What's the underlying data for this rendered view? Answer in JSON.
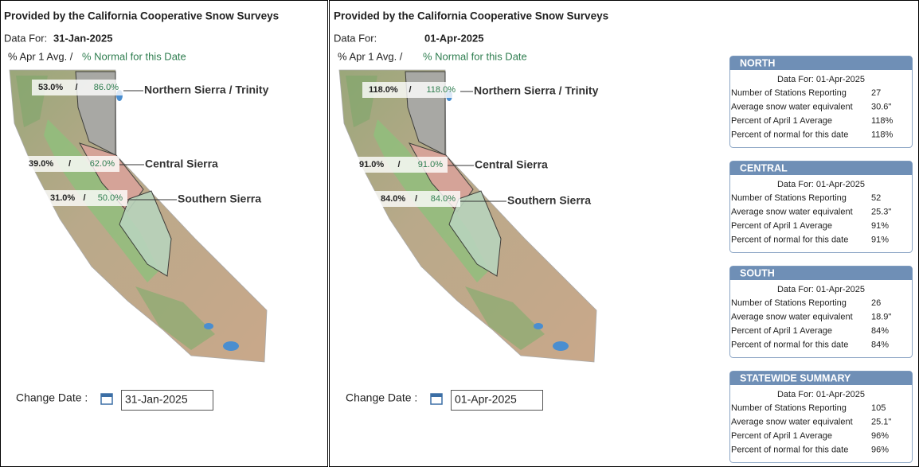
{
  "panels": [
    {
      "provider": "Provided by the California Cooperative Snow Surveys",
      "data_for_label": "Data For:",
      "date": "31-Jan-2025",
      "legend_avg": "% Apr 1 Avg. /",
      "legend_normal": "% Normal for this Date",
      "separator": "/",
      "regions": [
        {
          "name": "Northern Sierra / Trinity",
          "avg": "53.0%",
          "normal": "86.0%"
        },
        {
          "name": "Central Sierra",
          "avg": "39.0%",
          "normal": "62.0%"
        },
        {
          "name": "Southern Sierra",
          "avg": "31.0%",
          "normal": "50.0%"
        }
      ],
      "change_date_label": "Change Date :",
      "date_input": "31-Jan-2025"
    },
    {
      "provider": "Provided by the California Cooperative Snow Surveys",
      "data_for_label": "Data For:",
      "date": "01-Apr-2025",
      "legend_avg": "% Apr 1 Avg. /",
      "legend_normal": "% Normal for this Date",
      "separator": "/",
      "regions": [
        {
          "name": "Northern Sierra / Trinity",
          "avg": "118.0%",
          "normal": "118.0%"
        },
        {
          "name": "Central Sierra",
          "avg": "91.0%",
          "normal": "91.0%"
        },
        {
          "name": "Southern Sierra",
          "avg": "84.0%",
          "normal": "84.0%"
        }
      ],
      "change_date_label": "Change Date :",
      "date_input": "01-Apr-2025"
    }
  ],
  "summaries": [
    {
      "title": "NORTH",
      "data_for": "Data For: 01-Apr-2025",
      "rows": [
        [
          "Number of Stations Reporting",
          "27"
        ],
        [
          "Average snow water equivalent",
          "30.6\""
        ],
        [
          "Percent of April 1 Average",
          "118%"
        ],
        [
          "Percent of normal for this date",
          "118%"
        ]
      ]
    },
    {
      "title": "CENTRAL",
      "data_for": "Data For: 01-Apr-2025",
      "rows": [
        [
          "Number of Stations Reporting",
          "52"
        ],
        [
          "Average snow water equivalent",
          "25.3\""
        ],
        [
          "Percent of April 1 Average",
          "91%"
        ],
        [
          "Percent of normal for this date",
          "91%"
        ]
      ]
    },
    {
      "title": "SOUTH",
      "data_for": "Data For: 01-Apr-2025",
      "rows": [
        [
          "Number of Stations Reporting",
          "26"
        ],
        [
          "Average snow water equivalent",
          "18.9\""
        ],
        [
          "Percent of April 1 Average",
          "84%"
        ],
        [
          "Percent of normal for this date",
          "84%"
        ]
      ]
    },
    {
      "title": "STATEWIDE SUMMARY",
      "data_for": "Data For: 01-Apr-2025",
      "rows": [
        [
          "Number of Stations Reporting",
          "105"
        ],
        [
          "Average snow water equivalent",
          "25.1\""
        ],
        [
          "Percent of April 1 Average",
          "96%"
        ],
        [
          "Percent of normal for this date",
          "96%"
        ]
      ]
    }
  ]
}
